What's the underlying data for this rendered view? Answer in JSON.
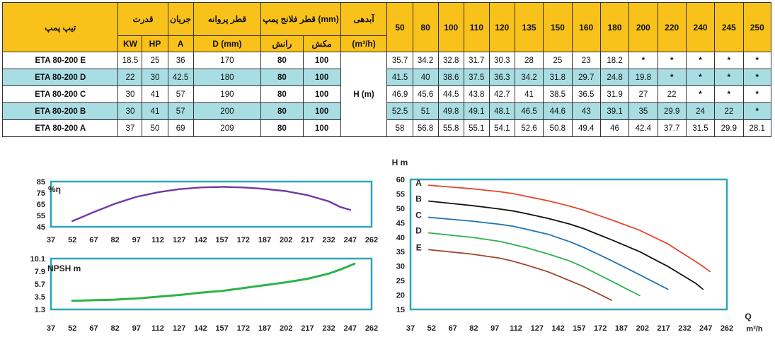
{
  "table": {
    "headers": {
      "model": "تیپ پمپ",
      "power": "قدرت",
      "current": "جریان",
      "impeller": "قطر پروانه",
      "flange": "قطر فلانج پمپ (mm)",
      "flow": "آبدهی",
      "kw": "KW",
      "hp": "HP",
      "a": "A",
      "dmm": "D (mm)",
      "discharge": "رانش",
      "suction": "مکش",
      "m3h": "(m³/h)"
    },
    "head_label": "H (m)",
    "flow_points": [
      "50",
      "80",
      "100",
      "110",
      "120",
      "135",
      "150",
      "160",
      "180",
      "200",
      "220",
      "240",
      "245",
      "250"
    ],
    "rows": [
      {
        "model": "ETA 80-200 E",
        "kw": "18.5",
        "hp": "25",
        "a": "36",
        "d": "170",
        "discharge": "80",
        "suction": "100",
        "heads": [
          "35.7",
          "34.2",
          "32.8",
          "31.7",
          "30.3",
          "28",
          "25",
          "23",
          "18.2",
          "*",
          "*",
          "*",
          "*",
          "*"
        ]
      },
      {
        "model": "ETA 80-200 D",
        "kw": "22",
        "hp": "30",
        "a": "42.5",
        "d": "180",
        "discharge": "80",
        "suction": "100",
        "heads": [
          "41.5",
          "40",
          "38.6",
          "37.5",
          "36.3",
          "34.2",
          "31.8",
          "29.7",
          "24.8",
          "19.8",
          "*",
          "*",
          "*",
          "*"
        ]
      },
      {
        "model": "ETA 80-200 C",
        "kw": "30",
        "hp": "41",
        "a": "57",
        "d": "190",
        "discharge": "80",
        "suction": "100",
        "heads": [
          "46.9",
          "45.6",
          "44.5",
          "43.8",
          "42.7",
          "41",
          "38.5",
          "36.5",
          "31.9",
          "27",
          "22",
          "*",
          "*",
          "*"
        ]
      },
      {
        "model": "ETA 80-200 B",
        "kw": "30",
        "hp": "41",
        "a": "57",
        "d": "200",
        "discharge": "80",
        "suction": "100",
        "heads": [
          "52.5",
          "51",
          "49.8",
          "49.1",
          "48.1",
          "46.5",
          "44.6",
          "43",
          "39.1",
          "35",
          "29.9",
          "24",
          "22",
          "*"
        ]
      },
      {
        "model": "ETA 80-200 A",
        "kw": "37",
        "hp": "50",
        "a": "69",
        "d": "209",
        "discharge": "80",
        "suction": "100",
        "heads": [
          "58",
          "56.8",
          "55.8",
          "55.1",
          "54.1",
          "52.6",
          "50.8",
          "49.4",
          "46",
          "42.4",
          "37.7",
          "31.5",
          "29.9",
          "28.1"
        ]
      }
    ]
  },
  "chart_data": [
    {
      "type": "line",
      "title": "",
      "ylabel": "%η",
      "xlabel": "",
      "x_ticks": [
        37,
        52,
        67,
        82,
        97,
        112,
        127,
        142,
        157,
        172,
        187,
        202,
        217,
        232,
        247,
        262
      ],
      "y_ticks": [
        45,
        55,
        65,
        75,
        85
      ],
      "xlim": [
        37,
        262
      ],
      "ylim": [
        45,
        85
      ],
      "grid": false,
      "color": "#6f3aa5",
      "series": [
        {
          "x": [
            52,
            67,
            82,
            97,
            112,
            127,
            142,
            157,
            172,
            187,
            202,
            217,
            232,
            240,
            247
          ],
          "y": [
            50,
            58,
            65.5,
            71.5,
            75.5,
            78.3,
            79.8,
            80.3,
            79.8,
            78.5,
            76.5,
            73,
            67.5,
            62.5,
            60
          ]
        }
      ]
    },
    {
      "type": "line",
      "title": "",
      "ylabel": "NPSH m",
      "xlabel": "",
      "x_ticks": [
        37,
        52,
        67,
        82,
        97,
        112,
        127,
        142,
        157,
        172,
        187,
        202,
        217,
        232,
        247,
        262
      ],
      "y_ticks": [
        1.3,
        3.5,
        5.7,
        7.9,
        10.1
      ],
      "xlim": [
        37,
        262
      ],
      "ylim": [
        1.3,
        10.1
      ],
      "grid": false,
      "color": "#2db24a",
      "series": [
        {
          "x": [
            52,
            67,
            82,
            97,
            112,
            127,
            142,
            157,
            172,
            187,
            202,
            217,
            232,
            240,
            250
          ],
          "y": [
            2.8,
            2.9,
            3.0,
            3.2,
            3.5,
            3.8,
            4.2,
            4.5,
            5.0,
            5.5,
            6.0,
            6.6,
            7.5,
            8.2,
            9.2
          ]
        }
      ]
    },
    {
      "type": "line",
      "title": "",
      "ylabel": "H m",
      "xlabel": "Q",
      "xlabel_unit": "m³/h",
      "x_ticks": [
        37,
        52,
        67,
        82,
        97,
        112,
        127,
        142,
        157,
        172,
        187,
        202,
        217,
        232,
        247,
        262
      ],
      "y_ticks": [
        15,
        20,
        25,
        30,
        35,
        40,
        45,
        50,
        55,
        60
      ],
      "xlim": [
        37,
        262
      ],
      "ylim": [
        15,
        60
      ],
      "grid": false,
      "series": [
        {
          "name": "A",
          "color": "#e8452c",
          "x": [
            50,
            80,
            100,
            110,
            120,
            135,
            150,
            160,
            180,
            200,
            220,
            240,
            245,
            250
          ],
          "y": [
            58,
            56.8,
            55.8,
            55.1,
            54.1,
            52.6,
            50.8,
            49.4,
            46,
            42.4,
            37.7,
            31.5,
            29.9,
            28.1
          ]
        },
        {
          "name": "B",
          "color": "#111111",
          "x": [
            50,
            80,
            100,
            110,
            120,
            135,
            150,
            160,
            180,
            200,
            220,
            240,
            245
          ],
          "y": [
            52.5,
            51,
            49.8,
            49.1,
            48.1,
            46.5,
            44.6,
            43,
            39.1,
            35,
            29.9,
            24,
            22
          ]
        },
        {
          "name": "C",
          "color": "#1e73b8",
          "x": [
            50,
            80,
            100,
            110,
            120,
            135,
            150,
            160,
            180,
            200,
            220
          ],
          "y": [
            46.9,
            45.6,
            44.5,
            43.8,
            42.7,
            41,
            38.5,
            36.5,
            31.9,
            27,
            22
          ]
        },
        {
          "name": "D",
          "color": "#2db24a",
          "x": [
            50,
            80,
            100,
            110,
            120,
            135,
            150,
            160,
            180,
            200
          ],
          "y": [
            41.5,
            40,
            38.6,
            37.5,
            36.3,
            34.2,
            31.8,
            29.7,
            24.8,
            19.8
          ]
        },
        {
          "name": "E",
          "color": "#a0472a",
          "x": [
            50,
            80,
            100,
            110,
            120,
            135,
            150,
            160,
            180
          ],
          "y": [
            35.7,
            34.2,
            32.8,
            31.7,
            30.3,
            28,
            25,
            23,
            18.2
          ]
        }
      ]
    }
  ]
}
